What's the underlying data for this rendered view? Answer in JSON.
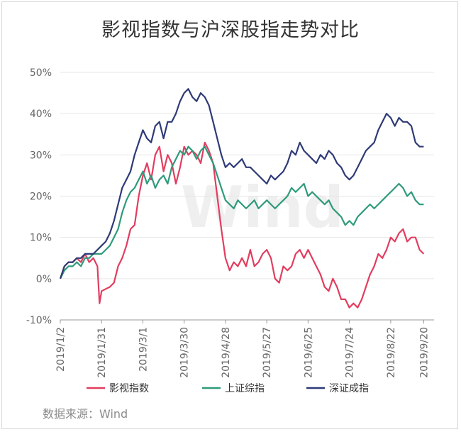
{
  "chart_data": {
    "type": "line",
    "title": "影视指数与沪深股指走势对比",
    "source": "数据来源：Wind",
    "watermark": "Wind",
    "ylim": [
      -10,
      50
    ],
    "yticks": [
      -10,
      0,
      10,
      20,
      30,
      40,
      50
    ],
    "ytick_labels": [
      "-10%",
      "0%",
      "10%",
      "20%",
      "30%",
      "40%",
      "50%"
    ],
    "x_range": [
      0,
      181
    ],
    "xticks": [
      0,
      20,
      40,
      60,
      80,
      100,
      120,
      140,
      160,
      176
    ],
    "xtick_labels": [
      "2019/1/2",
      "2019/1/31",
      "2019/3/1",
      "2019/3/30",
      "2019/4/28",
      "2019/5/27",
      "2019/6/25",
      "2019/7/24",
      "2019/8/22",
      "2019/9/20"
    ],
    "series": [
      {
        "name": "影视指数",
        "color": "#e23d5f",
        "points": [
          [
            0,
            0
          ],
          [
            2,
            3
          ],
          [
            4,
            4
          ],
          [
            6,
            4
          ],
          [
            8,
            5
          ],
          [
            10,
            4
          ],
          [
            12,
            6
          ],
          [
            14,
            4
          ],
          [
            16,
            5
          ],
          [
            18,
            3
          ],
          [
            19,
            -6
          ],
          [
            20,
            -3
          ],
          [
            24,
            -2
          ],
          [
            26,
            -1
          ],
          [
            28,
            3
          ],
          [
            30,
            5
          ],
          [
            32,
            8
          ],
          [
            34,
            12
          ],
          [
            36,
            13
          ],
          [
            38,
            20
          ],
          [
            40,
            25
          ],
          [
            42,
            28
          ],
          [
            44,
            24
          ],
          [
            46,
            30
          ],
          [
            48,
            32
          ],
          [
            50,
            26
          ],
          [
            52,
            30
          ],
          [
            54,
            28
          ],
          [
            56,
            23
          ],
          [
            58,
            27
          ],
          [
            60,
            32
          ],
          [
            62,
            30
          ],
          [
            64,
            31
          ],
          [
            66,
            30
          ],
          [
            68,
            28
          ],
          [
            70,
            33
          ],
          [
            72,
            31
          ],
          [
            74,
            28
          ],
          [
            76,
            20
          ],
          [
            78,
            12
          ],
          [
            80,
            5
          ],
          [
            82,
            2
          ],
          [
            84,
            4
          ],
          [
            86,
            3
          ],
          [
            88,
            5
          ],
          [
            90,
            3
          ],
          [
            92,
            7
          ],
          [
            94,
            3
          ],
          [
            96,
            4
          ],
          [
            98,
            6
          ],
          [
            100,
            7
          ],
          [
            102,
            5
          ],
          [
            104,
            0
          ],
          [
            106,
            -1
          ],
          [
            108,
            3
          ],
          [
            110,
            2
          ],
          [
            112,
            3
          ],
          [
            114,
            6
          ],
          [
            116,
            7
          ],
          [
            118,
            5
          ],
          [
            120,
            7
          ],
          [
            122,
            5
          ],
          [
            124,
            3
          ],
          [
            126,
            1
          ],
          [
            128,
            -2
          ],
          [
            130,
            -3
          ],
          [
            132,
            0
          ],
          [
            134,
            -2
          ],
          [
            136,
            -5
          ],
          [
            138,
            -5
          ],
          [
            140,
            -7
          ],
          [
            142,
            -6
          ],
          [
            144,
            -7
          ],
          [
            146,
            -5
          ],
          [
            148,
            -2
          ],
          [
            150,
            1
          ],
          [
            152,
            3
          ],
          [
            154,
            6
          ],
          [
            156,
            5
          ],
          [
            158,
            7
          ],
          [
            160,
            10
          ],
          [
            162,
            9
          ],
          [
            164,
            11
          ],
          [
            166,
            12
          ],
          [
            168,
            9
          ],
          [
            170,
            10
          ],
          [
            172,
            10
          ],
          [
            174,
            7
          ],
          [
            176,
            6
          ]
        ]
      },
      {
        "name": "上证综指",
        "color": "#2f9a7b",
        "points": [
          [
            0,
            0
          ],
          [
            2,
            2
          ],
          [
            4,
            3
          ],
          [
            6,
            3
          ],
          [
            8,
            4
          ],
          [
            10,
            3
          ],
          [
            12,
            5
          ],
          [
            14,
            5
          ],
          [
            16,
            6
          ],
          [
            18,
            6
          ],
          [
            20,
            6
          ],
          [
            22,
            7
          ],
          [
            24,
            8
          ],
          [
            26,
            10
          ],
          [
            28,
            12
          ],
          [
            30,
            16
          ],
          [
            32,
            19
          ],
          [
            34,
            21
          ],
          [
            36,
            22
          ],
          [
            38,
            24
          ],
          [
            40,
            26
          ],
          [
            42,
            23
          ],
          [
            44,
            25
          ],
          [
            46,
            22
          ],
          [
            48,
            24
          ],
          [
            50,
            25
          ],
          [
            52,
            23
          ],
          [
            54,
            27
          ],
          [
            56,
            29
          ],
          [
            58,
            31
          ],
          [
            60,
            30
          ],
          [
            62,
            32
          ],
          [
            64,
            31
          ],
          [
            66,
            29
          ],
          [
            68,
            31
          ],
          [
            70,
            32
          ],
          [
            72,
            30
          ],
          [
            74,
            28
          ],
          [
            76,
            25
          ],
          [
            78,
            22
          ],
          [
            80,
            19
          ],
          [
            82,
            18
          ],
          [
            84,
            17
          ],
          [
            86,
            19
          ],
          [
            88,
            18
          ],
          [
            90,
            17
          ],
          [
            92,
            18
          ],
          [
            94,
            19
          ],
          [
            96,
            17
          ],
          [
            98,
            18
          ],
          [
            100,
            19
          ],
          [
            102,
            18
          ],
          [
            104,
            17
          ],
          [
            106,
            18
          ],
          [
            108,
            19
          ],
          [
            110,
            20
          ],
          [
            112,
            22
          ],
          [
            114,
            21
          ],
          [
            116,
            22
          ],
          [
            118,
            23
          ],
          [
            120,
            20
          ],
          [
            122,
            21
          ],
          [
            124,
            20
          ],
          [
            126,
            19
          ],
          [
            128,
            18
          ],
          [
            130,
            19
          ],
          [
            132,
            17
          ],
          [
            134,
            16
          ],
          [
            136,
            15
          ],
          [
            138,
            13
          ],
          [
            140,
            14
          ],
          [
            142,
            13
          ],
          [
            144,
            15
          ],
          [
            146,
            16
          ],
          [
            148,
            17
          ],
          [
            150,
            18
          ],
          [
            152,
            17
          ],
          [
            154,
            18
          ],
          [
            156,
            19
          ],
          [
            158,
            20
          ],
          [
            160,
            21
          ],
          [
            162,
            22
          ],
          [
            164,
            23
          ],
          [
            166,
            22
          ],
          [
            168,
            20
          ],
          [
            170,
            21
          ],
          [
            172,
            19
          ],
          [
            174,
            18
          ],
          [
            176,
            18
          ]
        ]
      },
      {
        "name": "深证成指",
        "color": "#2e3a76",
        "points": [
          [
            0,
            0
          ],
          [
            2,
            3
          ],
          [
            4,
            4
          ],
          [
            6,
            4
          ],
          [
            8,
            5
          ],
          [
            10,
            5
          ],
          [
            12,
            6
          ],
          [
            14,
            6
          ],
          [
            16,
            6
          ],
          [
            18,
            7
          ],
          [
            20,
            8
          ],
          [
            22,
            9
          ],
          [
            24,
            11
          ],
          [
            26,
            14
          ],
          [
            28,
            18
          ],
          [
            30,
            22
          ],
          [
            32,
            24
          ],
          [
            34,
            26
          ],
          [
            36,
            30
          ],
          [
            38,
            33
          ],
          [
            40,
            36
          ],
          [
            42,
            34
          ],
          [
            44,
            33
          ],
          [
            46,
            37
          ],
          [
            48,
            38
          ],
          [
            50,
            34
          ],
          [
            52,
            38
          ],
          [
            54,
            38
          ],
          [
            56,
            40
          ],
          [
            58,
            43
          ],
          [
            60,
            45
          ],
          [
            62,
            46
          ],
          [
            64,
            44
          ],
          [
            66,
            43
          ],
          [
            68,
            45
          ],
          [
            70,
            44
          ],
          [
            72,
            42
          ],
          [
            74,
            38
          ],
          [
            76,
            34
          ],
          [
            78,
            30
          ],
          [
            80,
            27
          ],
          [
            82,
            28
          ],
          [
            84,
            27
          ],
          [
            86,
            28
          ],
          [
            88,
            29
          ],
          [
            90,
            27
          ],
          [
            92,
            27
          ],
          [
            94,
            26
          ],
          [
            96,
            25
          ],
          [
            98,
            24
          ],
          [
            100,
            23
          ],
          [
            102,
            25
          ],
          [
            104,
            24
          ],
          [
            106,
            25
          ],
          [
            108,
            26
          ],
          [
            110,
            28
          ],
          [
            112,
            31
          ],
          [
            114,
            30
          ],
          [
            116,
            33
          ],
          [
            118,
            31
          ],
          [
            120,
            30
          ],
          [
            122,
            29
          ],
          [
            124,
            28
          ],
          [
            126,
            30
          ],
          [
            128,
            29
          ],
          [
            130,
            31
          ],
          [
            132,
            30
          ],
          [
            134,
            28
          ],
          [
            136,
            27
          ],
          [
            138,
            25
          ],
          [
            140,
            24
          ],
          [
            142,
            25
          ],
          [
            144,
            27
          ],
          [
            146,
            29
          ],
          [
            148,
            31
          ],
          [
            150,
            32
          ],
          [
            152,
            33
          ],
          [
            154,
            36
          ],
          [
            156,
            38
          ],
          [
            158,
            40
          ],
          [
            160,
            39
          ],
          [
            162,
            37
          ],
          [
            164,
            39
          ],
          [
            166,
            38
          ],
          [
            168,
            38
          ],
          [
            170,
            37
          ],
          [
            172,
            33
          ],
          [
            174,
            32
          ],
          [
            176,
            32
          ]
        ]
      }
    ]
  }
}
